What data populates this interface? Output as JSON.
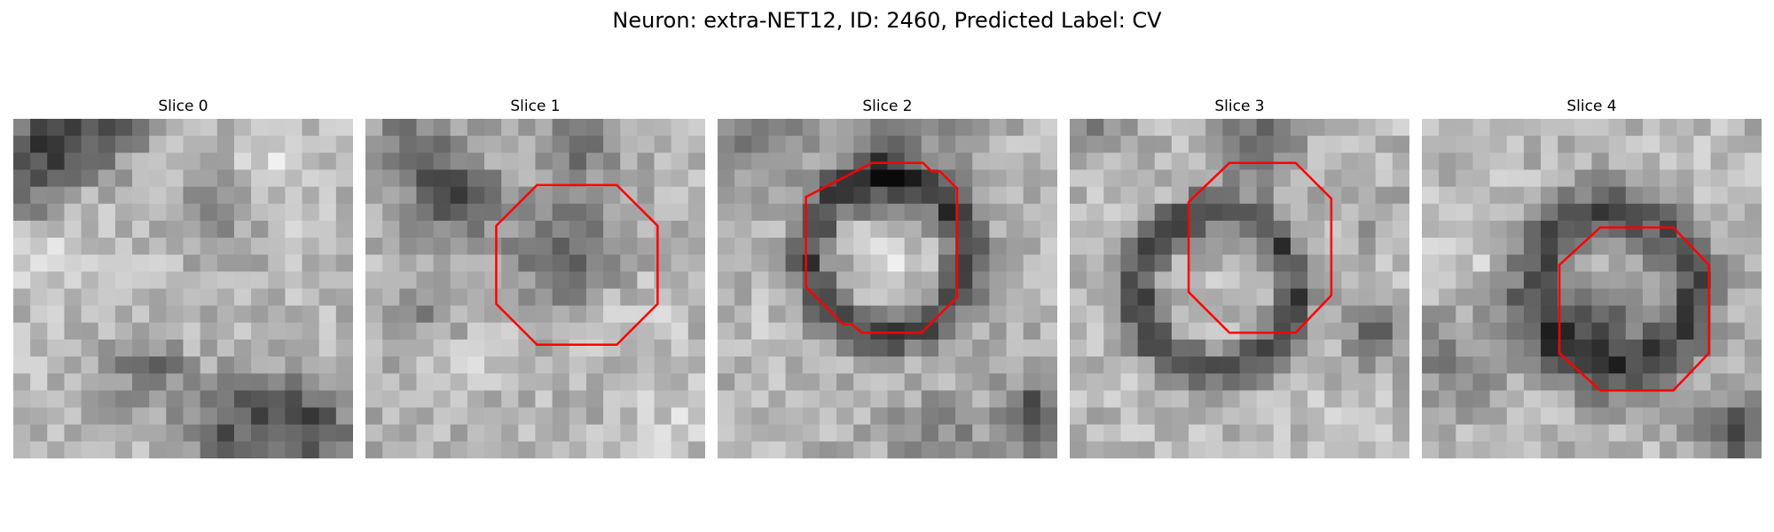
{
  "figure": {
    "title": "Neuron: extra-NET12, ID: 2460, Predicted Label: CV"
  },
  "panels": [
    {
      "title": "Slice 0",
      "outline": null
    },
    {
      "title": "Slice 1",
      "outline": [
        [
          10.1,
          3.9
        ],
        [
          14.8,
          3.9
        ],
        [
          17.2,
          6.3
        ],
        [
          17.2,
          10.9
        ],
        [
          14.8,
          13.3
        ],
        [
          10.1,
          13.3
        ],
        [
          7.7,
          10.9
        ],
        [
          7.7,
          6.3
        ]
      ]
    },
    {
      "title": "Slice 2",
      "outline": [
        [
          9.1,
          2.6
        ],
        [
          12.1,
          2.6
        ],
        [
          12.6,
          3.1
        ],
        [
          13.1,
          3.1
        ],
        [
          14.1,
          4.1
        ],
        [
          14.1,
          10.5
        ],
        [
          12.0,
          12.6
        ],
        [
          8.5,
          12.6
        ],
        [
          7.9,
          12.1
        ],
        [
          7.4,
          12.1
        ],
        [
          5.2,
          9.9
        ],
        [
          5.2,
          4.6
        ]
      ]
    },
    {
      "title": "Slice 3",
      "outline": [
        [
          9.4,
          2.6
        ],
        [
          13.3,
          2.6
        ],
        [
          15.4,
          4.7
        ],
        [
          15.4,
          10.4
        ],
        [
          13.3,
          12.6
        ],
        [
          9.4,
          12.6
        ],
        [
          7.0,
          10.2
        ],
        [
          7.0,
          4.9
        ]
      ]
    },
    {
      "title": "Slice 4",
      "outline": [
        [
          10.5,
          6.4
        ],
        [
          14.8,
          6.4
        ],
        [
          16.9,
          8.6
        ],
        [
          16.9,
          13.8
        ],
        [
          14.8,
          16.0
        ],
        [
          10.5,
          16.0
        ],
        [
          8.1,
          13.8
        ],
        [
          8.1,
          8.6
        ]
      ]
    }
  ]
}
